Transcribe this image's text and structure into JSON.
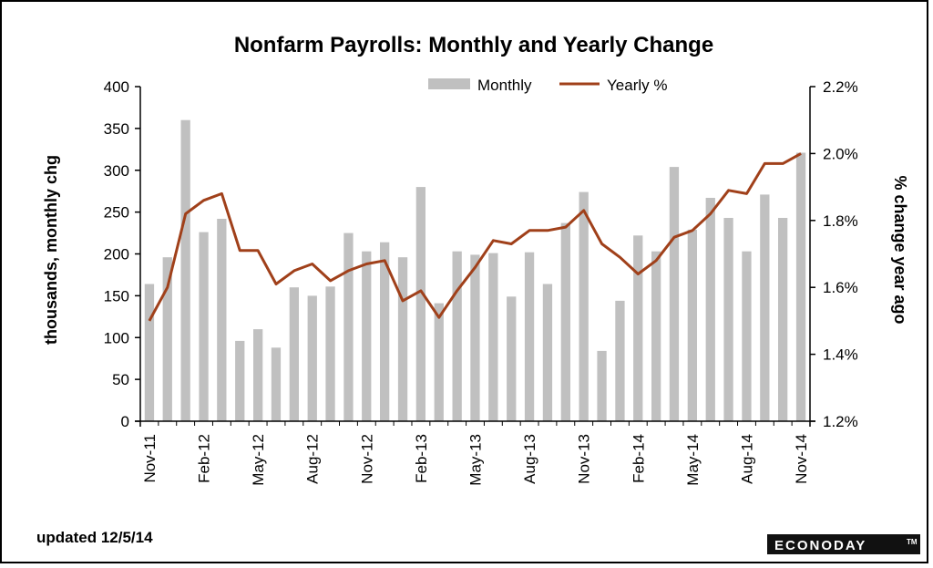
{
  "chart_data": {
    "type": "bar+line",
    "title": "Nonfarm Payrolls: Monthly and Yearly Change",
    "ylabel_left": "thousands, monthly chg",
    "ylabel_right": "% change year ago",
    "ylim_left": [
      0,
      400
    ],
    "ylim_right": [
      1.2,
      2.2
    ],
    "yticks_left": [
      "0",
      "50",
      "100",
      "150",
      "200",
      "250",
      "300",
      "350",
      "400"
    ],
    "yticks_right": [
      "1.2%",
      "1.4%",
      "1.6%",
      "1.8%",
      "2.0%",
      "2.2%"
    ],
    "xtick_labels": [
      "Nov-11",
      "Feb-12",
      "May-12",
      "Aug-12",
      "Nov-12",
      "Feb-13",
      "May-13",
      "Aug-13",
      "Nov-13",
      "Feb-14",
      "May-14",
      "Aug-14",
      "Nov-14"
    ],
    "categories": [
      "Nov-11",
      "Dec-11",
      "Jan-12",
      "Feb-12",
      "Mar-12",
      "Apr-12",
      "May-12",
      "Jun-12",
      "Jul-12",
      "Aug-12",
      "Sep-12",
      "Oct-12",
      "Nov-12",
      "Dec-12",
      "Jan-13",
      "Feb-13",
      "Mar-13",
      "Apr-13",
      "May-13",
      "Jun-13",
      "Jul-13",
      "Aug-13",
      "Sep-13",
      "Oct-13",
      "Nov-13",
      "Dec-13",
      "Jan-14",
      "Feb-14",
      "Mar-14",
      "Apr-14",
      "May-14",
      "Jun-14",
      "Jul-14",
      "Aug-14",
      "Sep-14",
      "Oct-14",
      "Nov-14"
    ],
    "series": [
      {
        "name": "Monthly",
        "type": "bar",
        "color": "#c0c0c0",
        "values": [
          164,
          196,
          360,
          226,
          242,
          96,
          110,
          88,
          160,
          150,
          161,
          225,
          203,
          214,
          196,
          280,
          141,
          203,
          199,
          201,
          149,
          202,
          164,
          237,
          274,
          84,
          144,
          222,
          203,
          304,
          229,
          267,
          243,
          203,
          271,
          243,
          321
        ]
      },
      {
        "name": "Yearly %",
        "type": "line",
        "color": "#a0401a",
        "values": [
          1.5,
          1.6,
          1.82,
          1.86,
          1.88,
          1.71,
          1.71,
          1.61,
          1.65,
          1.67,
          1.62,
          1.65,
          1.67,
          1.68,
          1.56,
          1.59,
          1.51,
          1.59,
          1.66,
          1.74,
          1.73,
          1.77,
          1.77,
          1.78,
          1.83,
          1.73,
          1.69,
          1.64,
          1.68,
          1.75,
          1.77,
          1.82,
          1.89,
          1.88,
          1.97,
          1.97,
          2.0
        ]
      }
    ],
    "legend_position": "top",
    "grid": false
  },
  "footer": {
    "updated": "updated 12/5/14",
    "logo": "ECONODAY"
  }
}
